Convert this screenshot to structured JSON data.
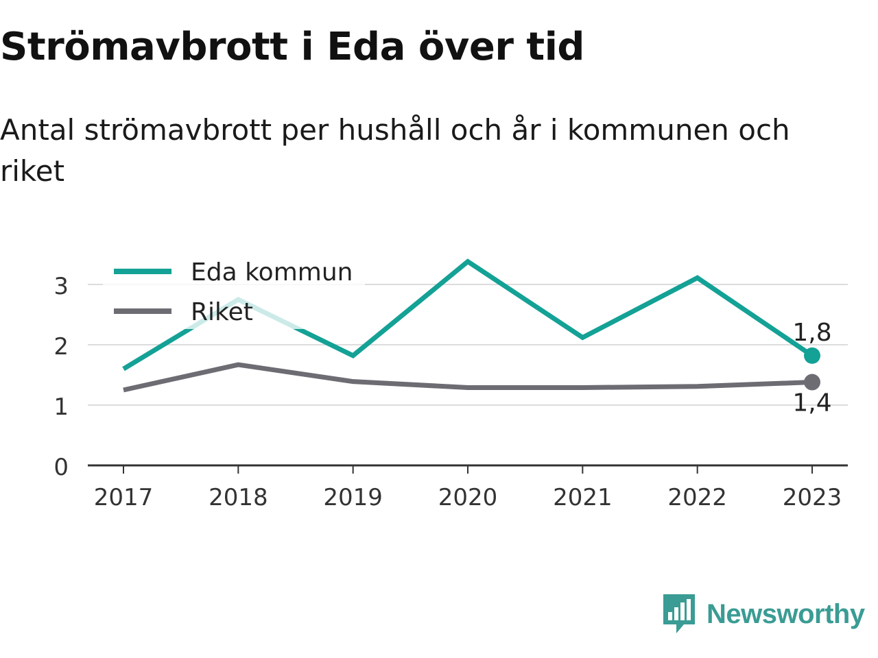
{
  "header": {
    "title": "Strömavbrott i Eda över tid",
    "subtitle": "Antal strömavbrott per hushåll och år i kommunen och riket"
  },
  "brand": {
    "name": "Newsworthy",
    "icon": "newsworthy-logo-icon",
    "color": "#3a9c94"
  },
  "chart_data": {
    "type": "line",
    "x": [
      2017,
      2018,
      2019,
      2020,
      2021,
      2022,
      2023
    ],
    "series": [
      {
        "name": "Eda kommun",
        "color": "#14a196",
        "values": [
          1.6,
          2.75,
          1.82,
          3.38,
          2.12,
          3.11,
          1.82
        ]
      },
      {
        "name": "Riket",
        "color": "#6d6c73",
        "values": [
          1.25,
          1.67,
          1.39,
          1.29,
          1.29,
          1.31,
          1.38
        ]
      }
    ],
    "end_labels": [
      "1,8",
      "1,4"
    ],
    "yticks": [
      0,
      1,
      2,
      3
    ],
    "ylim": [
      0,
      3.6
    ],
    "grid": true,
    "legend": "top-left",
    "xlabel": "",
    "ylabel": ""
  }
}
